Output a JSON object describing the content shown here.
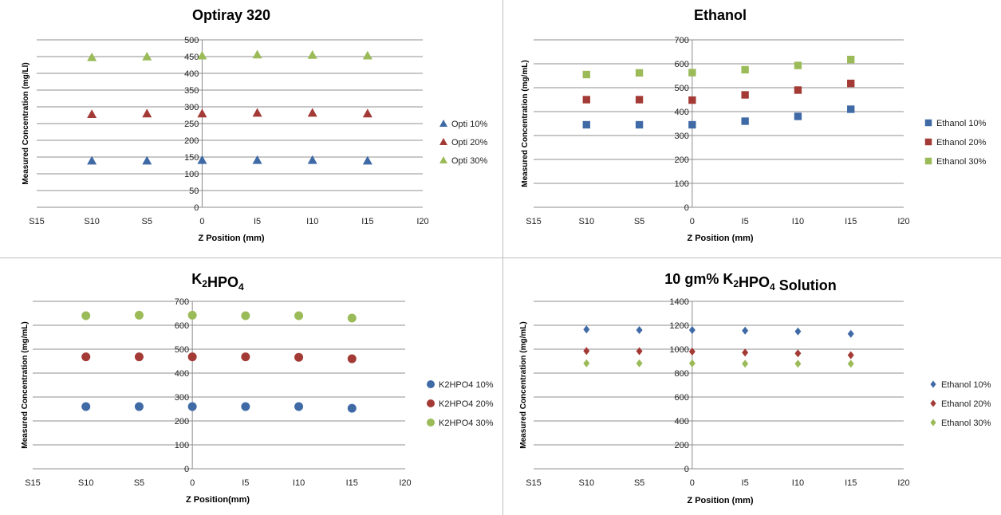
{
  "chart_data": [
    {
      "type": "scatter",
      "title_parts": [
        {
          "t": "Optiray 320"
        }
      ],
      "xlabel": "Z Position (mm)",
      "ylabel": "Measured Concentration (mg/Ll)",
      "x_categories": [
        "S15",
        "S10",
        "S5",
        "0",
        "I5",
        "I10",
        "I15",
        "I20"
      ],
      "ylim": [
        0,
        500
      ],
      "ystep": 50,
      "grid": true,
      "legend_position": "right",
      "marker": "triangle",
      "series": [
        {
          "name": "Opti 10%",
          "color": "#3f6aa6",
          "values": [
            null,
            139,
            139,
            141,
            141,
            141,
            139,
            null
          ]
        },
        {
          "name": "Opti 20%",
          "color": "#a33a35",
          "values": [
            null,
            278,
            280,
            280,
            282,
            282,
            280,
            null
          ]
        },
        {
          "name": "Opti 30%",
          "color": "#9bbb59",
          "values": [
            null,
            448,
            450,
            453,
            456,
            455,
            453,
            null
          ]
        }
      ]
    },
    {
      "type": "scatter",
      "title_parts": [
        {
          "t": "Ethanol"
        }
      ],
      "xlabel": "Z Position (mm)",
      "ylabel": "Measured Concentration (mg/mL)",
      "x_categories": [
        "S15",
        "S10",
        "S5",
        "0",
        "I5",
        "I10",
        "I15",
        "I20"
      ],
      "ylim": [
        0,
        700
      ],
      "ystep": 100,
      "grid": true,
      "legend_position": "right",
      "marker": "square",
      "series": [
        {
          "name": "Ethanol 10%",
          "color": "#3f6aa6",
          "values": [
            null,
            345,
            345,
            345,
            360,
            380,
            410,
            null
          ]
        },
        {
          "name": "Ethanol 20%",
          "color": "#a33a35",
          "values": [
            null,
            450,
            450,
            448,
            470,
            490,
            518,
            null
          ]
        },
        {
          "name": "Ethanol 30%",
          "color": "#9bbb59",
          "values": [
            null,
            555,
            562,
            563,
            575,
            593,
            618,
            null
          ]
        }
      ]
    },
    {
      "type": "scatter",
      "title_parts": [
        {
          "t": "K"
        },
        {
          "t": "2",
          "sub": true
        },
        {
          "t": "HPO"
        },
        {
          "t": "4",
          "sub": true
        }
      ],
      "xlabel": "Z Position(mm)",
      "ylabel": "Measured Concentration (mg/mL)",
      "x_categories": [
        "S15",
        "S10",
        "S5",
        "0",
        "I5",
        "I10",
        "I15",
        "I20"
      ],
      "ylim": [
        0,
        700
      ],
      "ystep": 100,
      "grid": true,
      "legend_position": "right",
      "marker": "circle",
      "series": [
        {
          "name": "K2HPO4 10%",
          "color": "#3f6aa6",
          "values": [
            null,
            260,
            260,
            260,
            260,
            260,
            253,
            null
          ]
        },
        {
          "name": "K2HPO4 20%",
          "color": "#a33a35",
          "values": [
            null,
            468,
            468,
            468,
            468,
            466,
            460,
            null
          ]
        },
        {
          "name": "K2HPO4 30%",
          "color": "#9bbb59",
          "values": [
            null,
            640,
            642,
            642,
            640,
            640,
            630,
            null
          ]
        }
      ]
    },
    {
      "type": "scatter",
      "title_parts": [
        {
          "t": "10 gm% K"
        },
        {
          "t": "2",
          "sub": true
        },
        {
          "t": "HPO"
        },
        {
          "t": "4",
          "sub": true
        },
        {
          "t": " Solution"
        }
      ],
      "xlabel": "Z Position (mm)",
      "ylabel": "Measured Concentration (mg/mL)",
      "x_categories": [
        "S15",
        "S10",
        "S5",
        "0",
        "I5",
        "I10",
        "I15",
        "I20"
      ],
      "ylim": [
        0,
        1400
      ],
      "ystep": 200,
      "grid": true,
      "legend_position": "right",
      "marker": "diamond",
      "series": [
        {
          "name": "Ethanol 10%",
          "color": "#3f6aa6",
          "values": [
            null,
            1165,
            1160,
            1160,
            1155,
            1148,
            1128,
            null
          ]
        },
        {
          "name": "Ethanol 20%",
          "color": "#a33a35",
          "values": [
            null,
            985,
            983,
            980,
            972,
            965,
            950,
            null
          ]
        },
        {
          "name": "Ethanol 30%",
          "color": "#9bbb59",
          "values": [
            null,
            882,
            882,
            882,
            878,
            878,
            878,
            null
          ]
        }
      ]
    }
  ]
}
